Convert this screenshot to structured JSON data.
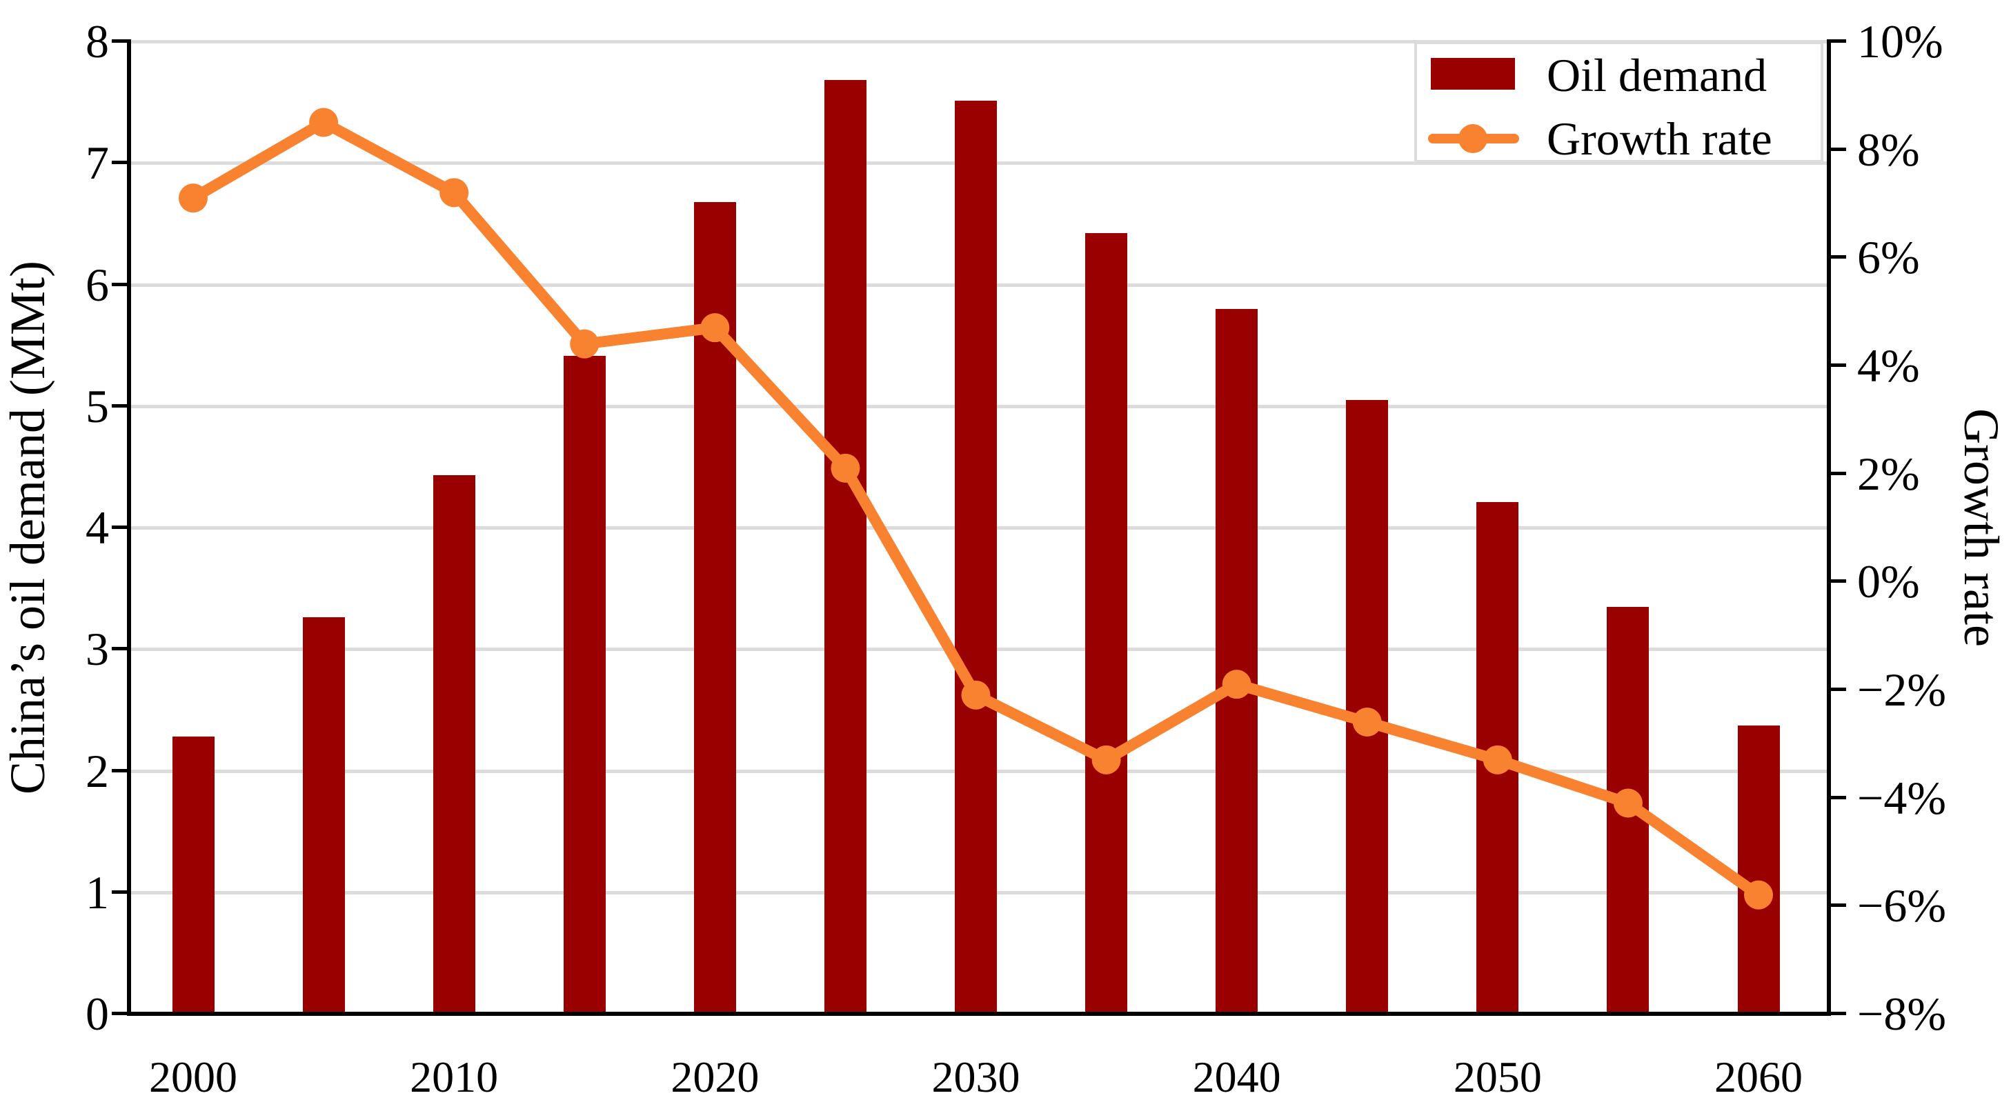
{
  "chart_data": {
    "type": "bar+line (dual axis)",
    "x": [
      2000,
      2005,
      2010,
      2015,
      2020,
      2025,
      2030,
      2035,
      2040,
      2045,
      2050,
      2055,
      2060
    ],
    "x_tick_labels": [
      "2000",
      "2010",
      "2020",
      "2030",
      "2040",
      "2050",
      "2060"
    ],
    "series": [
      {
        "name": "Oil demand",
        "type": "bar",
        "axis": "left",
        "color": "#990000",
        "values": [
          2.28,
          3.26,
          4.43,
          5.41,
          6.68,
          7.68,
          7.51,
          6.42,
          5.8,
          5.05,
          4.21,
          3.35,
          2.37
        ]
      },
      {
        "name": "Growth rate",
        "type": "line",
        "axis": "right",
        "color": "#f8822f",
        "values": [
          7.1,
          8.5,
          7.2,
          4.4,
          4.7,
          2.1,
          -2.1,
          -3.3,
          -1.9,
          -2.6,
          -3.3,
          -4.1,
          -5.8
        ]
      }
    ],
    "left_axis": {
      "title": "China’s oil demand (MMt)",
      "tick_labels": [
        "8",
        "7",
        "6",
        "5",
        "4",
        "3",
        "2",
        "1",
        "0"
      ],
      "range": [
        0,
        8
      ]
    },
    "right_axis": {
      "title": "Growth rate",
      "tick_labels": [
        "10%",
        "8%",
        "6%",
        "4%",
        "2%",
        "0%",
        "−2%",
        "−4%",
        "−6%",
        "−8%"
      ],
      "range_percent": [
        -8,
        10
      ]
    },
    "grid": "horizontal gridlines at each left-axis unit, light gray",
    "legend_position": "top-right"
  },
  "colors": {
    "bar": "#990000",
    "line": "#f8822f",
    "grid": "#dcdcdc",
    "axis": "#000000",
    "background": "#ffffff"
  }
}
